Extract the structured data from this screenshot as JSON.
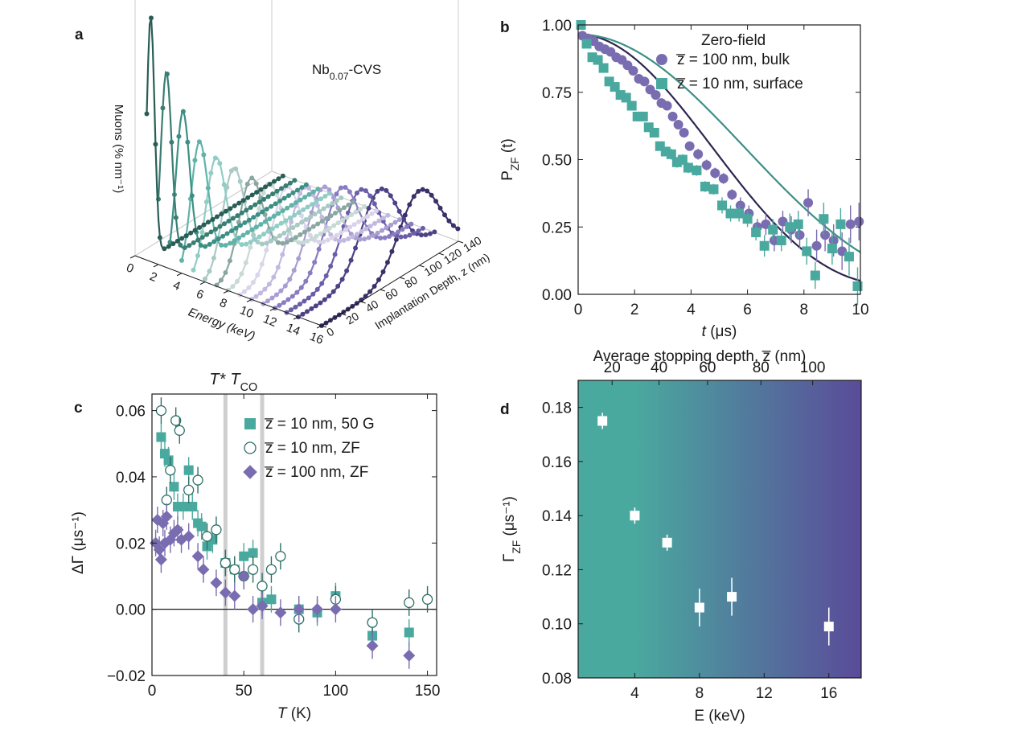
{
  "colors": {
    "teal": "#4aa99f",
    "teal_dark": "#2e6f66",
    "purple": "#7a6cb0",
    "purple_dark": "#2c2550",
    "axis": "#1a1a1a",
    "grid": "#cccccc",
    "vline": "#cfcfcf"
  },
  "chart_data": [
    {
      "panel": "a",
      "type": "line",
      "projection": "3d-waterfall",
      "label": "a",
      "annotation": "Nb",
      "annotation_sub": "0.07",
      "annotation_suffix": "-CVS",
      "xlabel": "Energy (keV)",
      "ylabel": "Implantation Depth, z (nm)",
      "zlabel": "Muons (% nm⁻¹)",
      "x_ticks": [
        "0",
        "2",
        "4",
        "6",
        "8",
        "10",
        "12",
        "14",
        "16"
      ],
      "y_ticks": [
        "0",
        "20",
        "40",
        "60",
        "80",
        "100",
        "120",
        "140"
      ],
      "xlim": [
        0,
        16
      ],
      "ylim": [
        0,
        140
      ],
      "series": [
        {
          "energy": 1,
          "mean_depth": 4,
          "width": 4,
          "peak": 1.0,
          "color": "#2a5d56"
        },
        {
          "energy": 2,
          "mean_depth": 8,
          "width": 5.5,
          "peak": 0.78,
          "color": "#3a7d72"
        },
        {
          "energy": 3,
          "mean_depth": 13,
          "width": 7,
          "peak": 0.62,
          "color": "#3d8f84"
        },
        {
          "energy": 4,
          "mean_depth": 18,
          "width": 8.5,
          "peak": 0.5,
          "color": "#5fb3a8"
        },
        {
          "energy": 5,
          "mean_depth": 23,
          "width": 10,
          "peak": 0.44,
          "color": "#8fcdc5"
        },
        {
          "energy": 6,
          "mean_depth": 29,
          "width": 11,
          "peak": 0.4,
          "color": "#a9c9c4"
        },
        {
          "energy": 7,
          "mean_depth": 35,
          "width": 12,
          "peak": 0.36,
          "color": "#8aa7a2"
        },
        {
          "energy": 8,
          "mean_depth": 41,
          "width": 13,
          "peak": 0.34,
          "color": "#c8d9d6"
        },
        {
          "energy": 9,
          "mean_depth": 47,
          "width": 14,
          "peak": 0.33,
          "color": "#d9d4ea"
        },
        {
          "energy": 10,
          "mean_depth": 54,
          "width": 15,
          "peak": 0.33,
          "color": "#c2b9df"
        },
        {
          "energy": 11,
          "mean_depth": 61,
          "width": 16,
          "peak": 0.33,
          "color": "#a99ed2"
        },
        {
          "energy": 12,
          "mean_depth": 68,
          "width": 17,
          "peak": 0.33,
          "color": "#8a7cc2"
        },
        {
          "energy": 13,
          "mean_depth": 75,
          "width": 18,
          "peak": 0.32,
          "color": "#6b5da8"
        },
        {
          "energy": 14,
          "mean_depth": 83,
          "width": 19,
          "peak": 0.32,
          "color": "#4e4286"
        },
        {
          "energy": 16,
          "mean_depth": 100,
          "width": 21,
          "peak": 0.31,
          "color": "#3a3168"
        }
      ]
    },
    {
      "panel": "b",
      "type": "scatter",
      "label": "b",
      "title": "",
      "legend_title": "Zero-field",
      "xlabel": "t (μs)",
      "xlabel_italic": "t",
      "xlabel_unit": " (μs)",
      "ylabel": "P",
      "ylabel_sub": "ZF",
      "ylabel_suffix": " (t)",
      "xlim": [
        0,
        10
      ],
      "ylim": [
        0,
        1.0
      ],
      "x_ticks": [
        "0",
        "2",
        "4",
        "6",
        "8",
        "10"
      ],
      "y_ticks": [
        "0.00",
        "0.25",
        "0.50",
        "0.75",
        "1.00"
      ],
      "legend_position": "top-right",
      "series": [
        {
          "name": "z̅ = 100 nm, bulk",
          "marker": "circle",
          "color": "#7a6cb0",
          "fit_color": "#2c2550",
          "x": [
            0.15,
            0.35,
            0.55,
            0.75,
            0.95,
            1.15,
            1.35,
            1.55,
            1.75,
            1.95,
            2.15,
            2.35,
            2.55,
            2.75,
            2.95,
            3.15,
            3.35,
            3.55,
            3.75,
            3.95,
            4.25,
            4.55,
            4.85,
            5.15,
            5.45,
            5.75,
            6.05,
            6.35,
            6.65,
            6.95,
            7.25,
            7.55,
            7.85,
            8.15,
            8.45,
            8.75,
            9.05,
            9.35,
            9.65,
            9.95
          ],
          "y": [
            0.96,
            0.95,
            0.94,
            0.92,
            0.91,
            0.9,
            0.88,
            0.87,
            0.85,
            0.83,
            0.8,
            0.79,
            0.76,
            0.74,
            0.71,
            0.7,
            0.66,
            0.63,
            0.6,
            0.55,
            0.52,
            0.48,
            0.45,
            0.43,
            0.37,
            0.33,
            0.3,
            0.25,
            0.26,
            0.2,
            0.27,
            0.24,
            0.22,
            0.34,
            0.18,
            0.22,
            0.2,
            0.16,
            0.26,
            0.27
          ],
          "yerr": [
            0.01,
            0.01,
            0.01,
            0.01,
            0.01,
            0.01,
            0.01,
            0.01,
            0.01,
            0.01,
            0.01,
            0.01,
            0.01,
            0.01,
            0.01,
            0.01,
            0.01,
            0.01,
            0.01,
            0.01,
            0.02,
            0.02,
            0.02,
            0.02,
            0.02,
            0.03,
            0.03,
            0.03,
            0.04,
            0.04,
            0.04,
            0.05,
            0.05,
            0.05,
            0.06,
            0.06,
            0.06,
            0.07,
            0.07,
            0.07
          ],
          "fit": "gaussian-kubo-toyabe",
          "fit_sigma": 0.155,
          "fit_amp": 0.965
        },
        {
          "name": "z̅ = 10 nm, surface",
          "marker": "square",
          "color": "#4aa99f",
          "fit_color": "#3d8f84",
          "x": [
            0.1,
            0.3,
            0.5,
            0.7,
            0.9,
            1.1,
            1.3,
            1.5,
            1.7,
            1.9,
            2.1,
            2.3,
            2.5,
            2.7,
            2.9,
            3.1,
            3.3,
            3.5,
            3.7,
            3.9,
            4.2,
            4.5,
            4.8,
            5.1,
            5.4,
            5.7,
            6.0,
            6.3,
            6.6,
            6.9,
            7.2,
            7.5,
            7.8,
            8.1,
            8.4,
            8.7,
            9.0,
            9.3,
            9.6,
            9.9
          ],
          "y": [
            1.0,
            0.93,
            0.88,
            0.87,
            0.84,
            0.79,
            0.77,
            0.74,
            0.73,
            0.7,
            0.66,
            0.66,
            0.62,
            0.6,
            0.55,
            0.53,
            0.52,
            0.49,
            0.5,
            0.47,
            0.46,
            0.4,
            0.39,
            0.33,
            0.3,
            0.3,
            0.28,
            0.23,
            0.18,
            0.24,
            0.2,
            0.25,
            0.26,
            0.16,
            0.07,
            0.28,
            0.17,
            0.26,
            0.14,
            0.03
          ],
          "yerr": [
            0.01,
            0.01,
            0.01,
            0.01,
            0.01,
            0.01,
            0.01,
            0.01,
            0.01,
            0.01,
            0.01,
            0.01,
            0.01,
            0.01,
            0.01,
            0.01,
            0.02,
            0.02,
            0.02,
            0.02,
            0.02,
            0.02,
            0.02,
            0.03,
            0.03,
            0.03,
            0.03,
            0.03,
            0.04,
            0.04,
            0.04,
            0.05,
            0.05,
            0.05,
            0.05,
            0.06,
            0.06,
            0.06,
            0.07,
            0.07
          ],
          "fit": "gaussian-kubo-toyabe",
          "fit_sigma": 0.125,
          "fit_amp": 0.965
        }
      ]
    },
    {
      "panel": "c",
      "type": "scatter",
      "label": "c",
      "xlabel": "T (K)",
      "xlabel_italic": "T",
      "xlabel_unit": " (K)",
      "ylabel": "ΔΓ (μs⁻¹)",
      "xlim": [
        0,
        155
      ],
      "ylim": [
        -0.02,
        0.065
      ],
      "x_ticks": [
        "0",
        "50",
        "100",
        "150"
      ],
      "y_ticks": [
        "−0.02",
        "0.00",
        "0.02",
        "0.04",
        "0.06"
      ],
      "vlines": [
        {
          "x": 40,
          "label": "T*"
        },
        {
          "x": 60,
          "label": "T",
          "label_sub": "CO"
        }
      ],
      "legend_position": "top-right",
      "series": [
        {
          "name": "z̅ = 10 nm, 50 G",
          "marker": "square",
          "color": "#4aa99f",
          "x": [
            5,
            7,
            9,
            12,
            14,
            17,
            20,
            22,
            25,
            27,
            30,
            33,
            40,
            45,
            50,
            55,
            60,
            65,
            80,
            90,
            100,
            120,
            140
          ],
          "y": [
            0.052,
            0.047,
            0.045,
            0.037,
            0.031,
            0.031,
            0.042,
            0.031,
            0.026,
            0.025,
            0.019,
            0.021,
            0.014,
            0.012,
            0.016,
            0.017,
            0.002,
            0.003,
            0.0,
            -0.001,
            0.004,
            -0.008,
            -0.007
          ],
          "yerr": [
            0.004,
            0.004,
            0.004,
            0.004,
            0.004,
            0.004,
            0.004,
            0.004,
            0.004,
            0.004,
            0.004,
            0.004,
            0.004,
            0.004,
            0.004,
            0.004,
            0.004,
            0.004,
            0.004,
            0.004,
            0.004,
            0.004,
            0.004
          ]
        },
        {
          "name": "z̅ = 10 nm, ZF",
          "marker": "open-circle",
          "color": "#2e6f66",
          "x": [
            5,
            8,
            10,
            13,
            15,
            20,
            25,
            30,
            35,
            40,
            45,
            50,
            55,
            60,
            65,
            70,
            80,
            100,
            120,
            140,
            150
          ],
          "y": [
            0.06,
            0.033,
            0.042,
            0.057,
            0.054,
            0.036,
            0.039,
            0.022,
            0.024,
            0.014,
            0.012,
            0.01,
            0.012,
            0.007,
            0.012,
            0.016,
            -0.003,
            0.003,
            -0.004,
            0.002,
            0.003
          ],
          "yerr": [
            0.004,
            0.004,
            0.004,
            0.004,
            0.004,
            0.004,
            0.004,
            0.004,
            0.004,
            0.004,
            0.004,
            0.004,
            0.004,
            0.004,
            0.004,
            0.004,
            0.004,
            0.004,
            0.004,
            0.004,
            0.004
          ]
        },
        {
          "name": "z̅ = 100 nm, ZF",
          "marker": "diamond",
          "color": "#7a6cb0",
          "x": [
            2,
            3,
            4,
            5,
            6,
            7,
            8,
            10,
            12,
            14,
            16,
            20,
            25,
            28,
            35,
            40,
            45,
            50,
            55,
            60,
            70,
            80,
            90,
            100,
            120,
            140
          ],
          "y": [
            0.02,
            0.027,
            0.018,
            0.015,
            0.026,
            0.02,
            0.028,
            0.021,
            0.023,
            0.024,
            0.021,
            0.022,
            0.016,
            0.012,
            0.008,
            0.005,
            0.004,
            0.01,
            0.0,
            0.001,
            -0.001,
            0.0,
            0.0,
            0.0,
            -0.011,
            -0.014
          ],
          "yerr": [
            0.004,
            0.004,
            0.004,
            0.004,
            0.004,
            0.004,
            0.004,
            0.004,
            0.004,
            0.004,
            0.004,
            0.004,
            0.004,
            0.004,
            0.004,
            0.004,
            0.004,
            0.004,
            0.004,
            0.004,
            0.004,
            0.004,
            0.004,
            0.004,
            0.004,
            0.004
          ]
        }
      ]
    },
    {
      "panel": "d",
      "type": "scatter",
      "label": "d",
      "xlabel": "E (keV)",
      "ylabel": "Γ",
      "ylabel_sub": "ZF",
      "ylabel_suffix": " (μs⁻¹)",
      "top_xlabel": "Average stopping depth, z̅ (nm)",
      "top_ticks": [
        {
          "energy": 2.6,
          "label": "20"
        },
        {
          "energy": 5.5,
          "label": "40"
        },
        {
          "energy": 8.5,
          "label": "60"
        },
        {
          "energy": 11.8,
          "label": "80"
        },
        {
          "energy": 15,
          "label": "100"
        }
      ],
      "background_gradient": [
        "#4aa99f",
        "#5a4b9a"
      ],
      "xlim": [
        0.5,
        18
      ],
      "ylim": [
        0.08,
        0.19
      ],
      "x_ticks": [
        "4",
        "8",
        "12",
        "16"
      ],
      "y_ticks": [
        "0.08",
        "0.10",
        "0.12",
        "0.14",
        "0.16",
        "0.18"
      ],
      "series": [
        {
          "name": "Gamma_ZF",
          "marker": "square",
          "color": "#ffffff",
          "x": [
            2,
            4,
            6,
            8,
            10,
            16
          ],
          "y": [
            0.175,
            0.14,
            0.13,
            0.106,
            0.11,
            0.099
          ],
          "yerr": [
            0.003,
            0.003,
            0.003,
            0.007,
            0.007,
            0.007
          ]
        }
      ]
    }
  ]
}
